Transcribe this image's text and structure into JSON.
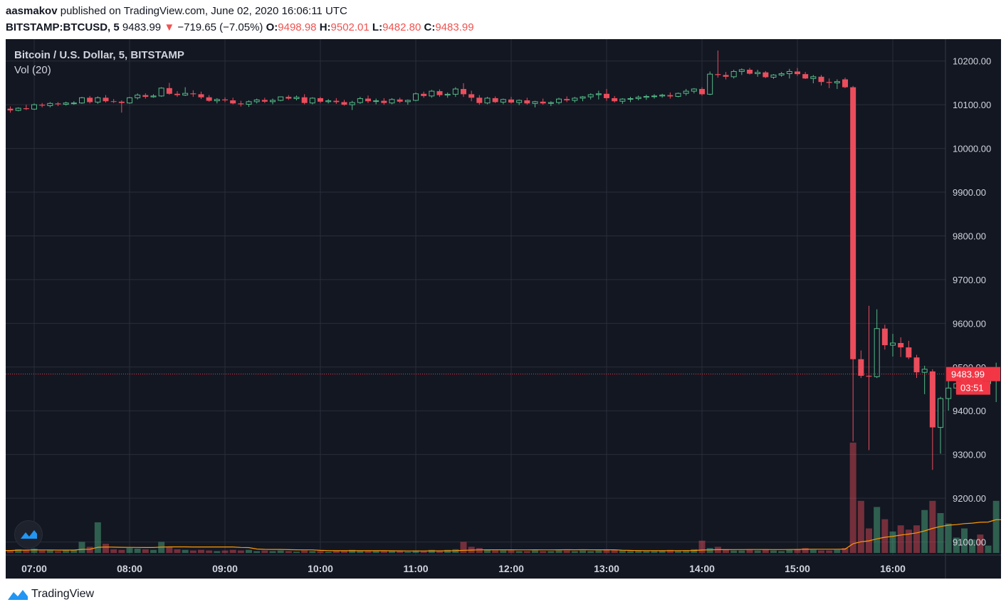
{
  "publish_line": {
    "user": "aasmakov",
    "text": " published on TradingView.com, June 02, 2020 16:06:11 UTC"
  },
  "quote_line": {
    "symbol": "BITSTAMP:BTCUSD, 5",
    "last": "9483.99",
    "arrow": "▼",
    "change": "−719.65 (−7.05%)",
    "o_label": "O:",
    "o": "9498.98",
    "h_label": "H:",
    "h": "9502.01",
    "l_label": "L:",
    "l": "9482.80",
    "c_label": "C:",
    "c": "9483.99"
  },
  "legend": {
    "title": "Bitcoin / U.S. Dollar, 5, BITSTAMP",
    "vol": "Vol (20)"
  },
  "footer": {
    "brand": "TradingView"
  },
  "colors": {
    "background": "#131722",
    "grid": "#2a2e39",
    "text": "#d1d4dc",
    "up": "#53b987",
    "down": "#eb4d5c",
    "volume_ma": "#ff9800",
    "last_price": "#f23645"
  },
  "chart_data": {
    "type": "candlestick",
    "price_axis": {
      "ticks": [
        "10200.00",
        "10100.00",
        "10000.00",
        "9900.00",
        "9800.00",
        "9700.00",
        "9600.00",
        "9500.00",
        "9400.00",
        "9300.00",
        "9200.00",
        "9100.00"
      ],
      "range": [
        9070,
        10250
      ]
    },
    "time_axis": {
      "ticks": [
        "07:00",
        "08:00",
        "09:00",
        "10:00",
        "11:00",
        "12:00",
        "13:00",
        "14:00",
        "15:00",
        "16:00"
      ],
      "start_minutes": 395,
      "interval_minutes": 5
    },
    "last_price_label": "9483.99",
    "countdown_label": "03:51",
    "candles": [
      {
        "o": 10085,
        "h": 10097,
        "l": 10080,
        "c": 10093,
        "v": 5
      },
      {
        "o": 10093,
        "h": 10099,
        "l": 10086,
        "c": 10091,
        "v": 3
      },
      {
        "o": 10091,
        "h": 10096,
        "l": 10082,
        "c": 10087,
        "v": 4
      },
      {
        "o": 10087,
        "h": 10094,
        "l": 10085,
        "c": 10092,
        "v": 6
      },
      {
        "o": 10092,
        "h": 10100,
        "l": 10088,
        "c": 10090,
        "v": 5
      },
      {
        "o": 10090,
        "h": 10103,
        "l": 10088,
        "c": 10100,
        "v": 7
      },
      {
        "o": 10100,
        "h": 10104,
        "l": 10094,
        "c": 10098,
        "v": 4
      },
      {
        "o": 10098,
        "h": 10106,
        "l": 10094,
        "c": 10103,
        "v": 5
      },
      {
        "o": 10103,
        "h": 10106,
        "l": 10097,
        "c": 10101,
        "v": 3
      },
      {
        "o": 10101,
        "h": 10107,
        "l": 10098,
        "c": 10104,
        "v": 4
      },
      {
        "o": 10104,
        "h": 10108,
        "l": 10100,
        "c": 10104,
        "v": 5
      },
      {
        "o": 10104,
        "h": 10118,
        "l": 10102,
        "c": 10116,
        "v": 18
      },
      {
        "o": 10116,
        "h": 10120,
        "l": 10103,
        "c": 10106,
        "v": 10
      },
      {
        "o": 10106,
        "h": 10119,
        "l": 10102,
        "c": 10116,
        "v": 50
      },
      {
        "o": 10116,
        "h": 10122,
        "l": 10105,
        "c": 10108,
        "v": 15
      },
      {
        "o": 10108,
        "h": 10113,
        "l": 10104,
        "c": 10107,
        "v": 6
      },
      {
        "o": 10107,
        "h": 10110,
        "l": 10082,
        "c": 10104,
        "v": 5
      },
      {
        "o": 10104,
        "h": 10118,
        "l": 10102,
        "c": 10116,
        "v": 8
      },
      {
        "o": 10116,
        "h": 10126,
        "l": 10112,
        "c": 10122,
        "v": 7
      },
      {
        "o": 10122,
        "h": 10126,
        "l": 10114,
        "c": 10118,
        "v": 6
      },
      {
        "o": 10118,
        "h": 10124,
        "l": 10116,
        "c": 10120,
        "v": 5
      },
      {
        "o": 10120,
        "h": 10140,
        "l": 10118,
        "c": 10138,
        "v": 18
      },
      {
        "o": 10138,
        "h": 10150,
        "l": 10123,
        "c": 10125,
        "v": 10
      },
      {
        "o": 10125,
        "h": 10131,
        "l": 10118,
        "c": 10122,
        "v": 6
      },
      {
        "o": 10122,
        "h": 10140,
        "l": 10120,
        "c": 10126,
        "v": 5
      },
      {
        "o": 10126,
        "h": 10133,
        "l": 10118,
        "c": 10124,
        "v": 4
      },
      {
        "o": 10124,
        "h": 10130,
        "l": 10113,
        "c": 10117,
        "v": 5
      },
      {
        "o": 10117,
        "h": 10122,
        "l": 10107,
        "c": 10109,
        "v": 4
      },
      {
        "o": 10109,
        "h": 10115,
        "l": 10103,
        "c": 10112,
        "v": 3
      },
      {
        "o": 10112,
        "h": 10117,
        "l": 10106,
        "c": 10110,
        "v": 4
      },
      {
        "o": 10110,
        "h": 10116,
        "l": 10101,
        "c": 10103,
        "v": 5
      },
      {
        "o": 10103,
        "h": 10109,
        "l": 10096,
        "c": 10101,
        "v": 4
      },
      {
        "o": 10101,
        "h": 10110,
        "l": 10095,
        "c": 10107,
        "v": 5
      },
      {
        "o": 10107,
        "h": 10114,
        "l": 10103,
        "c": 10111,
        "v": 3
      },
      {
        "o": 10111,
        "h": 10116,
        "l": 10104,
        "c": 10107,
        "v": 4
      },
      {
        "o": 10107,
        "h": 10114,
        "l": 10101,
        "c": 10110,
        "v": 3
      },
      {
        "o": 10110,
        "h": 10119,
        "l": 10108,
        "c": 10118,
        "v": 4
      },
      {
        "o": 10118,
        "h": 10122,
        "l": 10111,
        "c": 10114,
        "v": 3
      },
      {
        "o": 10114,
        "h": 10121,
        "l": 10110,
        "c": 10117,
        "v": 2
      },
      {
        "o": 10117,
        "h": 10124,
        "l": 10101,
        "c": 10104,
        "v": 4
      },
      {
        "o": 10104,
        "h": 10117,
        "l": 10101,
        "c": 10115,
        "v": 3
      },
      {
        "o": 10115,
        "h": 10118,
        "l": 10104,
        "c": 10107,
        "v": 3
      },
      {
        "o": 10107,
        "h": 10113,
        "l": 10103,
        "c": 10109,
        "v": 2
      },
      {
        "o": 10109,
        "h": 10115,
        "l": 10102,
        "c": 10106,
        "v": 3
      },
      {
        "o": 10106,
        "h": 10111,
        "l": 10098,
        "c": 10100,
        "v": 4
      },
      {
        "o": 10100,
        "h": 10109,
        "l": 10088,
        "c": 10105,
        "v": 5
      },
      {
        "o": 10105,
        "h": 10118,
        "l": 10102,
        "c": 10114,
        "v": 4
      },
      {
        "o": 10114,
        "h": 10121,
        "l": 10104,
        "c": 10108,
        "v": 3
      },
      {
        "o": 10108,
        "h": 10114,
        "l": 10101,
        "c": 10109,
        "v": 3
      },
      {
        "o": 10109,
        "h": 10115,
        "l": 10100,
        "c": 10104,
        "v": 4
      },
      {
        "o": 10104,
        "h": 10115,
        "l": 10101,
        "c": 10112,
        "v": 3
      },
      {
        "o": 10112,
        "h": 10116,
        "l": 10104,
        "c": 10107,
        "v": 3
      },
      {
        "o": 10107,
        "h": 10112,
        "l": 10100,
        "c": 10110,
        "v": 2
      },
      {
        "o": 10110,
        "h": 10128,
        "l": 10108,
        "c": 10125,
        "v": 4
      },
      {
        "o": 10125,
        "h": 10130,
        "l": 10116,
        "c": 10120,
        "v": 3
      },
      {
        "o": 10120,
        "h": 10134,
        "l": 10116,
        "c": 10131,
        "v": 5
      },
      {
        "o": 10131,
        "h": 10135,
        "l": 10118,
        "c": 10122,
        "v": 4
      },
      {
        "o": 10122,
        "h": 10128,
        "l": 10116,
        "c": 10124,
        "v": 5
      },
      {
        "o": 10124,
        "h": 10140,
        "l": 10118,
        "c": 10136,
        "v": 6
      },
      {
        "o": 10136,
        "h": 10149,
        "l": 10118,
        "c": 10124,
        "v": 18
      },
      {
        "o": 10124,
        "h": 10132,
        "l": 10108,
        "c": 10116,
        "v": 10
      },
      {
        "o": 10116,
        "h": 10122,
        "l": 10100,
        "c": 10104,
        "v": 8
      },
      {
        "o": 10104,
        "h": 10118,
        "l": 10101,
        "c": 10115,
        "v": 5
      },
      {
        "o": 10115,
        "h": 10119,
        "l": 10104,
        "c": 10106,
        "v": 4
      },
      {
        "o": 10106,
        "h": 10114,
        "l": 10101,
        "c": 10112,
        "v": 4
      },
      {
        "o": 10112,
        "h": 10118,
        "l": 10103,
        "c": 10105,
        "v": 4
      },
      {
        "o": 10105,
        "h": 10112,
        "l": 10099,
        "c": 10110,
        "v": 3
      },
      {
        "o": 10110,
        "h": 10116,
        "l": 10100,
        "c": 10103,
        "v": 3
      },
      {
        "o": 10103,
        "h": 10109,
        "l": 10094,
        "c": 10107,
        "v": 4
      },
      {
        "o": 10107,
        "h": 10114,
        "l": 10100,
        "c": 10103,
        "v": 3
      },
      {
        "o": 10103,
        "h": 10108,
        "l": 10097,
        "c": 10105,
        "v": 3
      },
      {
        "o": 10105,
        "h": 10116,
        "l": 10101,
        "c": 10113,
        "v": 4
      },
      {
        "o": 10113,
        "h": 10119,
        "l": 10106,
        "c": 10110,
        "v": 4
      },
      {
        "o": 10110,
        "h": 10118,
        "l": 10105,
        "c": 10115,
        "v": 3
      },
      {
        "o": 10115,
        "h": 10120,
        "l": 10108,
        "c": 10118,
        "v": 4
      },
      {
        "o": 10118,
        "h": 10126,
        "l": 10112,
        "c": 10123,
        "v": 3
      },
      {
        "o": 10123,
        "h": 10132,
        "l": 10112,
        "c": 10125,
        "v": 4
      },
      {
        "o": 10125,
        "h": 10136,
        "l": 10109,
        "c": 10115,
        "v": 6
      },
      {
        "o": 10115,
        "h": 10120,
        "l": 10105,
        "c": 10108,
        "v": 5
      },
      {
        "o": 10108,
        "h": 10115,
        "l": 10102,
        "c": 10113,
        "v": 4
      },
      {
        "o": 10113,
        "h": 10118,
        "l": 10106,
        "c": 10114,
        "v": 3
      },
      {
        "o": 10114,
        "h": 10121,
        "l": 10110,
        "c": 10117,
        "v": 4
      },
      {
        "o": 10117,
        "h": 10123,
        "l": 10111,
        "c": 10119,
        "v": 3
      },
      {
        "o": 10119,
        "h": 10124,
        "l": 10114,
        "c": 10120,
        "v": 3
      },
      {
        "o": 10120,
        "h": 10125,
        "l": 10116,
        "c": 10122,
        "v": 3
      },
      {
        "o": 10122,
        "h": 10128,
        "l": 10114,
        "c": 10119,
        "v": 5
      },
      {
        "o": 10119,
        "h": 10128,
        "l": 10117,
        "c": 10126,
        "v": 4
      },
      {
        "o": 10126,
        "h": 10136,
        "l": 10121,
        "c": 10131,
        "v": 4
      },
      {
        "o": 10131,
        "h": 10138,
        "l": 10126,
        "c": 10136,
        "v": 6
      },
      {
        "o": 10136,
        "h": 10140,
        "l": 10121,
        "c": 10124,
        "v": 20
      },
      {
        "o": 10124,
        "h": 10176,
        "l": 10122,
        "c": 10170,
        "v": 8
      },
      {
        "o": 10170,
        "h": 10224,
        "l": 10162,
        "c": 10168,
        "v": 10
      },
      {
        "o": 10168,
        "h": 10175,
        "l": 10158,
        "c": 10164,
        "v": 6
      },
      {
        "o": 10164,
        "h": 10180,
        "l": 10160,
        "c": 10176,
        "v": 4
      },
      {
        "o": 10176,
        "h": 10183,
        "l": 10168,
        "c": 10180,
        "v": 4
      },
      {
        "o": 10180,
        "h": 10184,
        "l": 10169,
        "c": 10171,
        "v": 5
      },
      {
        "o": 10171,
        "h": 10180,
        "l": 10164,
        "c": 10174,
        "v": 4
      },
      {
        "o": 10174,
        "h": 10177,
        "l": 10161,
        "c": 10163,
        "v": 6
      },
      {
        "o": 10163,
        "h": 10170,
        "l": 10159,
        "c": 10168,
        "v": 4
      },
      {
        "o": 10168,
        "h": 10175,
        "l": 10164,
        "c": 10171,
        "v": 3
      },
      {
        "o": 10171,
        "h": 10182,
        "l": 10160,
        "c": 10176,
        "v": 5
      },
      {
        "o": 10176,
        "h": 10184,
        "l": 10166,
        "c": 10170,
        "v": 6
      },
      {
        "o": 10170,
        "h": 10175,
        "l": 10159,
        "c": 10160,
        "v": 8
      },
      {
        "o": 10160,
        "h": 10168,
        "l": 10149,
        "c": 10164,
        "v": 5
      },
      {
        "o": 10164,
        "h": 10168,
        "l": 10144,
        "c": 10152,
        "v": 4
      },
      {
        "o": 10152,
        "h": 10160,
        "l": 10138,
        "c": 10150,
        "v": 4
      },
      {
        "o": 10150,
        "h": 10158,
        "l": 10136,
        "c": 10153,
        "v": 5
      },
      {
        "o": 10158,
        "h": 10162,
        "l": 10138,
        "c": 10140,
        "v": 8
      },
      {
        "o": 10140,
        "h": 10143,
        "l": 9330,
        "c": 9518,
        "v": 180
      },
      {
        "o": 9518,
        "h": 9538,
        "l": 9475,
        "c": 9480,
        "v": 85
      },
      {
        "o": 9480,
        "h": 9640,
        "l": 9310,
        "c": 9478,
        "v": 40
      },
      {
        "o": 9478,
        "h": 9632,
        "l": 9475,
        "c": 9588,
        "v": 75
      },
      {
        "o": 9588,
        "h": 9597,
        "l": 9540,
        "c": 9550,
        "v": 55
      },
      {
        "o": 9550,
        "h": 9576,
        "l": 9524,
        "c": 9555,
        "v": 35
      },
      {
        "o": 9555,
        "h": 9568,
        "l": 9523,
        "c": 9545,
        "v": 45
      },
      {
        "o": 9545,
        "h": 9560,
        "l": 9518,
        "c": 9522,
        "v": 38
      },
      {
        "o": 9522,
        "h": 9528,
        "l": 9475,
        "c": 9488,
        "v": 45
      },
      {
        "o": 9488,
        "h": 9503,
        "l": 9438,
        "c": 9495,
        "v": 70
      },
      {
        "o": 9490,
        "h": 9495,
        "l": 9265,
        "c": 9362,
        "v": 85
      },
      {
        "o": 9362,
        "h": 9432,
        "l": 9302,
        "c": 9428,
        "v": 65
      },
      {
        "o": 9428,
        "h": 9490,
        "l": 9400,
        "c": 9452,
        "v": 48
      },
      {
        "o": 9452,
        "h": 9478,
        "l": 9440,
        "c": 9462,
        "v": 25
      },
      {
        "o": 9462,
        "h": 9478,
        "l": 9452,
        "c": 9468,
        "v": 40
      },
      {
        "o": 9468,
        "h": 9486,
        "l": 9448,
        "c": 9472,
        "v": 22
      },
      {
        "o": 9472,
        "h": 9490,
        "l": 9456,
        "c": 9462,
        "v": 30
      },
      {
        "o": 9462,
        "h": 9476,
        "l": 9458,
        "c": 9469,
        "v": 12
      },
      {
        "o": 9469,
        "h": 9510,
        "l": 9420,
        "c": 9498,
        "v": 85
      },
      {
        "o": 9498,
        "h": 9502,
        "l": 9482,
        "c": 9484,
        "v": 3
      }
    ]
  }
}
